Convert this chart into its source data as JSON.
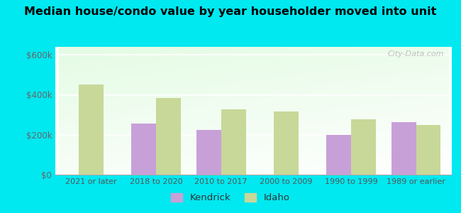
{
  "title": "Median house/condo value by year householder moved into unit",
  "categories": [
    "2021 or later",
    "2018 to 2020",
    "2010 to 2017",
    "2000 to 2009",
    "1990 to 1999",
    "1989 or earlier"
  ],
  "kendrick_values": [
    0,
    255000,
    225000,
    0,
    198000,
    262000
  ],
  "idaho_values": [
    450000,
    385000,
    328000,
    318000,
    278000,
    248000
  ],
  "kendrick_color": "#c8a0d8",
  "idaho_color": "#c8d898",
  "background_outer": "#00e8f0",
  "yticks": [
    0,
    200000,
    400000,
    600000
  ],
  "ylim": [
    0,
    640000
  ],
  "bar_width": 0.38,
  "legend_labels": [
    "Kendrick",
    "Idaho"
  ],
  "watermark": "City-Data.com"
}
